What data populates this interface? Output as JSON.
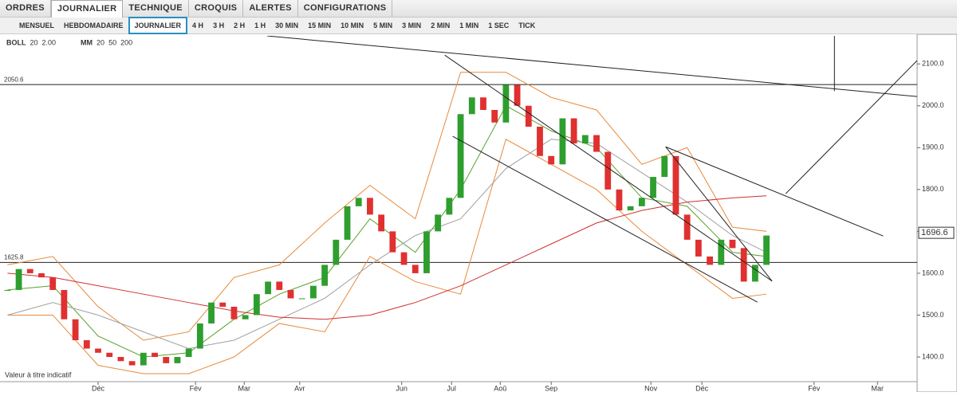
{
  "toolbar": {
    "menus": [
      "ORDRES",
      "JOURNALIER",
      "TECHNIQUE",
      "CROQUIS",
      "ALERTES",
      "CONFIGURATIONS"
    ]
  },
  "timeframes": [
    "MENSUEL",
    "HEBDOMADAIRE",
    "JOURNALIER",
    "4 H",
    "3 H",
    "2 H",
    "1 H",
    "30 MIN",
    "15 MIN",
    "10 MIN",
    "5 MIN",
    "3 MIN",
    "2 MIN",
    "1 MIN",
    "1 SEC",
    "TICK"
  ],
  "chart_data": {
    "type": "candlestick",
    "legend": {
      "boll": "BOLL",
      "boll_period": "20",
      "boll_dev": "2.00",
      "mm": "MM",
      "mm_periods": [
        "20",
        "50",
        "200"
      ]
    },
    "x": [
      -8,
      -7,
      -6,
      -5,
      -4,
      -3,
      -2,
      -1,
      0,
      1,
      2,
      3,
      4,
      5,
      6,
      7,
      8,
      9,
      10,
      11,
      12,
      13,
      14,
      15,
      16,
      17,
      18,
      19,
      20,
      21,
      22,
      23,
      24,
      25,
      26,
      27,
      28,
      29,
      30,
      31,
      32,
      33,
      34,
      35,
      36,
      37,
      38,
      39,
      40,
      41,
      42,
      43,
      44,
      45,
      46,
      47,
      48,
      49,
      50,
      51,
      52,
      53,
      54,
      55,
      56,
      57,
      58,
      59
    ],
    "close": [
      1560,
      1610,
      1600,
      1590,
      1560,
      1490,
      1440,
      1420,
      1410,
      1400,
      1390,
      1380,
      1410,
      1400,
      1385,
      1400,
      1420,
      1480,
      1530,
      1520,
      1490,
      1500,
      1550,
      1580,
      1560,
      1540,
      1540,
      1570,
      1620,
      1680,
      1760,
      1780,
      1740,
      1700,
      1650,
      1620,
      1600,
      1700,
      1740,
      1780,
      1980,
      2020,
      1990,
      1960,
      2050,
      2000,
      1950,
      1880,
      1860,
      1970,
      1910,
      1930,
      1890,
      1800,
      1750,
      1760,
      1780,
      1830,
      1880,
      1740,
      1680,
      1640,
      1620,
      1680,
      1660,
      1580,
      1620,
      1690
    ],
    "up_color": "#2e9e2e",
    "down_color": "#e03030",
    "indicators": [
      {
        "color": "#e8893a",
        "x": [
          -8,
          -4,
          0,
          4,
          8,
          12,
          16,
          20,
          24,
          28,
          32,
          36,
          40,
          44,
          48,
          52,
          56,
          59
        ],
        "values": [
          1620,
          1640,
          1520,
          1440,
          1460,
          1590,
          1620,
          1720,
          1810,
          1730,
          2080,
          2080,
          2020,
          1990,
          1860,
          1900,
          1710,
          1700
        ]
      },
      {
        "color": "#e8893a",
        "x": [
          -8,
          -4,
          0,
          4,
          8,
          12,
          16,
          20,
          24,
          28,
          32,
          36,
          40,
          44,
          48,
          52,
          56,
          59
        ],
        "values": [
          1500,
          1500,
          1380,
          1360,
          1360,
          1400,
          1480,
          1460,
          1640,
          1580,
          1550,
          1920,
          1860,
          1800,
          1700,
          1620,
          1540,
          1550
        ]
      },
      {
        "color": "#5aa02c",
        "x": [
          -8,
          -4,
          0,
          4,
          8,
          12,
          16,
          20,
          24,
          28,
          32,
          36,
          40,
          44,
          48,
          52,
          56,
          59
        ],
        "values": [
          1560,
          1570,
          1450,
          1400,
          1410,
          1490,
          1550,
          1590,
          1730,
          1650,
          1800,
          2000,
          1940,
          1900,
          1780,
          1760,
          1650,
          1640
        ]
      },
      {
        "color": "#a0a0a0",
        "x": [
          -8,
          -4,
          0,
          4,
          8,
          12,
          16,
          20,
          24,
          28,
          32,
          36,
          40,
          44,
          48,
          52,
          56,
          59
        ],
        "values": [
          1500,
          1530,
          1500,
          1460,
          1420,
          1440,
          1490,
          1540,
          1620,
          1690,
          1730,
          1850,
          1920,
          1910,
          1840,
          1770,
          1690,
          1650
        ]
      },
      {
        "color": "#d03030",
        "x": [
          -8,
          -4,
          0,
          4,
          8,
          12,
          16,
          20,
          24,
          28,
          32,
          36,
          40,
          44,
          48,
          52,
          56,
          59
        ],
        "values": [
          1600,
          1590,
          1570,
          1550,
          1530,
          1510,
          1495,
          1490,
          1500,
          1530,
          1570,
          1620,
          1670,
          1720,
          1750,
          1770,
          1780,
          1785
        ]
      }
    ],
    "hlines": [
      {
        "value": 2050.6,
        "label": "2050.6"
      },
      {
        "value": 1625.8,
        "label": "1625.8"
      }
    ],
    "trendlines": [
      [
        14.9,
        2167,
        72.3,
        2022
      ],
      [
        30.6,
        2121,
        59.5,
        1581
      ],
      [
        31.3,
        1927,
        58.2,
        1531
      ],
      [
        50.1,
        1902,
        69.3,
        1689
      ],
      [
        50.1,
        1902,
        59.5,
        1581
      ],
      [
        60.7,
        1790,
        72.3,
        2108
      ],
      [
        65,
        2167,
        65,
        2035
      ]
    ],
    "last_price": {
      "value": 1696.6,
      "label": "1696.6"
    },
    "xlim": [
      -8.66,
      72.3
    ],
    "ylim": [
      1341,
      2167
    ],
    "xticks": [
      {
        "value": 0,
        "label": "Déc"
      },
      {
        "value": 8.6,
        "label": "Fév"
      },
      {
        "value": 12.9,
        "label": "Mar"
      },
      {
        "value": 17.8,
        "label": "Avr"
      },
      {
        "value": 26.8,
        "label": "Jun"
      },
      {
        "value": 31.2,
        "label": "Jul"
      },
      {
        "value": 35.5,
        "label": "Aoû"
      },
      {
        "value": 40,
        "label": "Sep"
      },
      {
        "value": 48.8,
        "label": "Nov"
      },
      {
        "value": 53.3,
        "label": "Déc"
      },
      {
        "value": 63.2,
        "label": "Fév"
      },
      {
        "value": 68.8,
        "label": "Mar"
      }
    ],
    "yticks": [
      {
        "value": 1400,
        "label": "1400.0"
      },
      {
        "value": 1500,
        "label": "1500.0"
      },
      {
        "value": 1600,
        "label": "1600.0"
      },
      {
        "value": 1700,
        "label": "1700.0"
      },
      {
        "value": 1800,
        "label": "1800.0"
      },
      {
        "value": 1900,
        "label": "1900.0"
      },
      {
        "value": 2000,
        "label": "2000.0"
      },
      {
        "value": 2100,
        "label": "2100.0"
      }
    ],
    "note": "Valeur à titre indicatif"
  }
}
